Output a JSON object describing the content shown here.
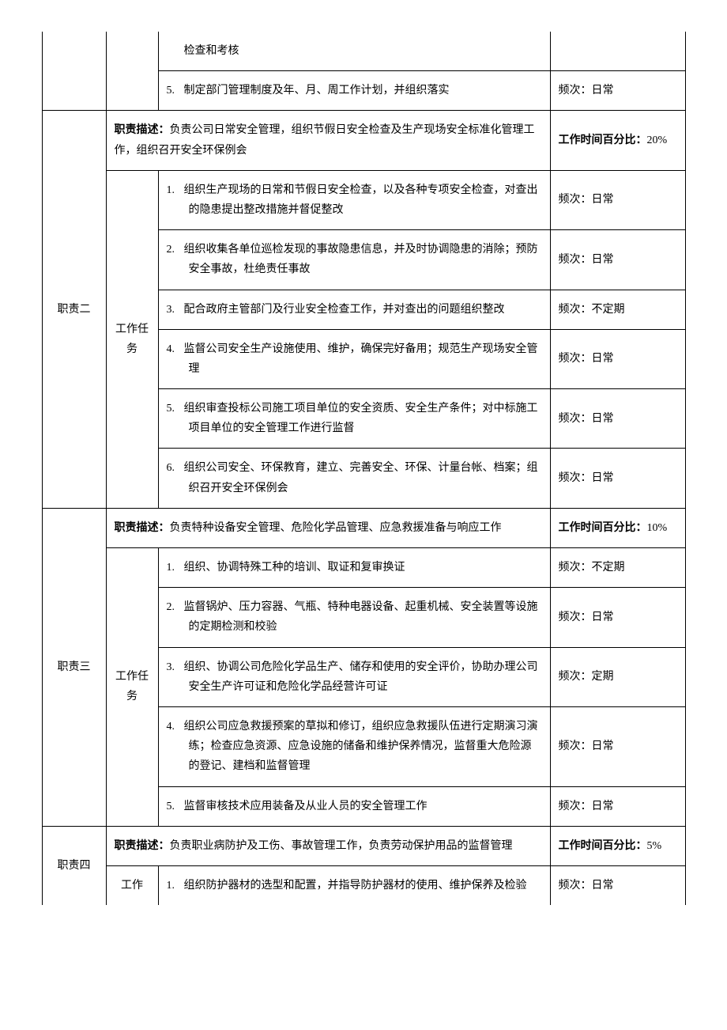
{
  "r1": {
    "task_prev_cont": "检查和考核",
    "task5": "制定部门管理制度及年、月、周工作计划，并组织落实",
    "freq5": "频次：日常"
  },
  "r2": {
    "label": "职责二",
    "work_label": "工作任务",
    "desc_label": "职责描述：",
    "desc": "负责公司日常安全管理，组织节假日安全检查及生产现场安全标准化管理工作，组织召开安全环保例会",
    "time_label": "工作时间百分比：",
    "time_pct": "20%",
    "task1": "组织生产现场的日常和节假日安全检查，以及各种专项安全检查，对查出的隐患提出整改措施并督促整改",
    "freq1": "频次：日常",
    "task2": "组织收集各单位巡检发现的事故隐患信息，并及时协调隐患的消除；预防安全事故，杜绝责任事故",
    "freq2": "频次：日常",
    "task3": "配合政府主管部门及行业安全检查工作，并对查出的问题组织整改",
    "freq3": "频次：不定期",
    "task4": "监督公司安全生产设施使用、维护，确保完好备用；规范生产现场安全管理",
    "freq4": "频次：日常",
    "task5": "组织审查投标公司施工项目单位的安全资质、安全生产条件；对中标施工项目单位的安全管理工作进行监督",
    "freq5": "频次：日常",
    "task6": "组织公司安全、环保教育，建立、完善安全、环保、计量台帐、档案；组织召开安全环保例会",
    "freq6": "频次：日常"
  },
  "r3": {
    "label": "职责三",
    "work_label": "工作任务",
    "desc_label": "职责描述：",
    "desc": "负责特种设备安全管理、危险化学品管理、应急救援准备与响应工作",
    "time_label": "工作时间百分比：",
    "time_pct": "10%",
    "task1": "组织、协调特殊工种的培训、取证和复审换证",
    "freq1": "频次：不定期",
    "task2": "监督锅炉、压力容器、气瓶、特种电器设备、起重机械、安全装置等设施的定期检测和校验",
    "freq2": "频次：日常",
    "task3": "组织、协调公司危险化学品生产、储存和使用的安全评价，协助办理公司安全生产许可证和危险化学品经营许可证",
    "freq3": "频次：定期",
    "task4": "组织公司应急救援预案的草拟和修订，组织应急救援队伍进行定期演习演练；检查应急资源、应急设施的储备和维护保养情况，监督重大危险源的登记、建档和监督管理",
    "freq4": "频次：日常",
    "task5": "监督审核技术应用装备及从业人员的安全管理工作",
    "freq5": "频次：日常"
  },
  "r4": {
    "label": "职责四",
    "work_label": "工作",
    "desc_label": "职责描述：",
    "desc": "负责职业病防护及工伤、事故管理工作，负责劳动保护用品的监督管理",
    "time_label": "工作时间百分比：",
    "time_pct": "5%",
    "task1": "组织防护器材的选型和配置，并指导防护器材的使用、维护保养及检验",
    "freq1": "频次：日常"
  }
}
